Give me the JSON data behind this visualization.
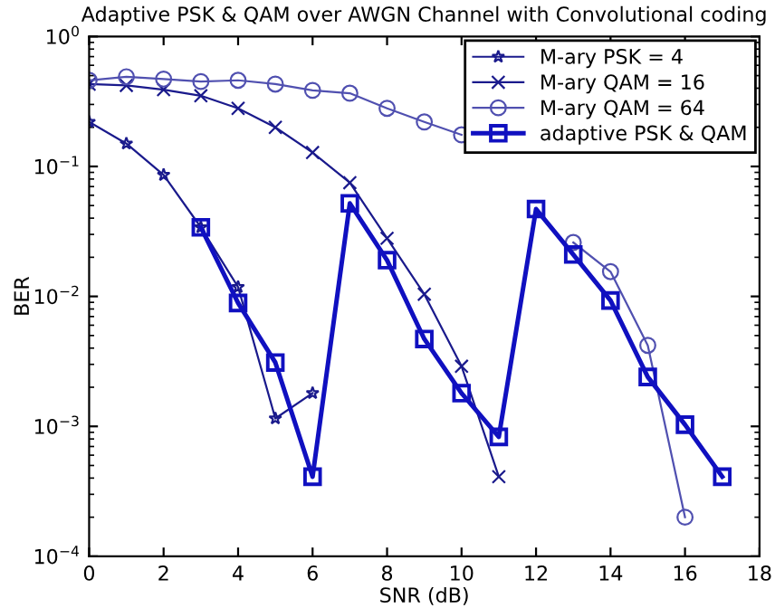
{
  "chart_data": {
    "type": "line",
    "title": "Adaptive PSK & QAM over AWGN Channel with Convolutional coding",
    "xlabel": "SNR (dB)",
    "ylabel": "BER",
    "log": "y",
    "grid": false,
    "legend": "top right",
    "xlim": [
      0,
      18
    ],
    "xticks": [
      0,
      2,
      4,
      6,
      8,
      10,
      12,
      14,
      16,
      18
    ],
    "ylim": [
      0.0001,
      1
    ],
    "yticks": [
      {
        "value": 0.0001,
        "label": "10$^{−4}$"
      },
      {
        "value": 0.001,
        "label": "10$^{−3}$"
      },
      {
        "value": 0.01,
        "label": "10$^{−2}$"
      },
      {
        "value": 0.1,
        "label": "10$^{−1}$"
      },
      {
        "value": 1,
        "label": "10$^{0}$"
      }
    ],
    "series": [
      {
        "name": "M-ary PSK = 4",
        "color": "#1a1a8c",
        "marker": "star",
        "x": [
          0,
          1,
          2,
          3,
          4,
          5,
          6
        ],
        "values": [
          0.22,
          0.15,
          0.086,
          0.034,
          0.0118,
          0.00115,
          0.0018
        ]
      },
      {
        "name": "M-ary QAM = 16",
        "color": "#1a1a8c",
        "marker": "cross",
        "x": [
          0,
          1,
          2,
          3,
          4,
          5,
          6,
          7,
          8,
          9,
          10,
          11
        ],
        "values": [
          0.43,
          0.42,
          0.39,
          0.35,
          0.28,
          0.2,
          0.128,
          0.075,
          0.028,
          0.0104,
          0.0029,
          0.00041
        ]
      },
      {
        "name": "M-ary QAM = 64",
        "color": "#5050b0",
        "marker": "circle",
        "x": [
          0,
          1,
          2,
          3,
          4,
          5,
          6,
          7,
          8,
          9,
          10,
          11,
          12,
          13,
          14,
          15,
          16
        ],
        "values": [
          0.46,
          0.49,
          0.47,
          0.45,
          0.46,
          0.43,
          0.385,
          0.366,
          0.28,
          0.22,
          0.175,
          null,
          null,
          0.026,
          0.0155,
          0.0042,
          0.0002
        ]
      },
      {
        "name": "adaptive PSK & QAM",
        "color": "#1010c0",
        "marker": "square",
        "x": [
          3,
          4,
          5,
          6,
          7,
          8,
          9,
          10,
          11,
          12,
          13,
          14,
          15,
          16,
          17
        ],
        "values": [
          0.034,
          0.0089,
          0.0031,
          0.00041,
          0.052,
          0.019,
          0.0047,
          0.0018,
          0.00083,
          0.047,
          0.021,
          0.0093,
          0.0024,
          0.00103,
          0.00041
        ]
      }
    ]
  }
}
